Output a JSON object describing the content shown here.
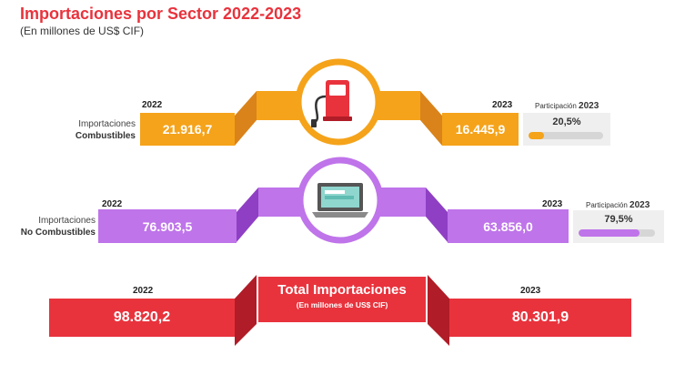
{
  "header": {
    "title": "Importaciones por Sector 2022-2023",
    "subtitle": "(En millones de US$ CIF)"
  },
  "colors": {
    "title": "#e8333d",
    "fuel": "#f5a31a",
    "fuel_dark": "#d9831a",
    "nonfuel": "#bf74ea",
    "nonfuel_dark": "#8f3fc4",
    "total": "#e8333d",
    "total_dark": "#b01c27"
  },
  "icons": {
    "fuel": "fuel-pump-icon",
    "nonfuel": "laptop-icon"
  },
  "chart_data": {
    "type": "bar",
    "title": "Importaciones por Sector 2022-2023",
    "subtitle": "(En millones de US$ CIF)",
    "categories": [
      "2022",
      "2023"
    ],
    "series": [
      {
        "name_line1": "Importaciones",
        "name_line2": "Combustibles",
        "values": [
          "21.916,7",
          "16.445,9"
        ],
        "values_numeric": [
          21916.7,
          16445.9
        ],
        "share_label": "Participación",
        "share_year": "2023",
        "share_text": "20,5%",
        "share_value": 20.5
      },
      {
        "name_line1": "Importaciones",
        "name_line2": "No Combustibles",
        "values": [
          "76.903,5",
          "63.856,0"
        ],
        "values_numeric": [
          76903.5,
          63856.0
        ],
        "share_label": "Participación",
        "share_year": "2023",
        "share_text": "79,5%",
        "share_value": 79.5
      }
    ],
    "total": {
      "title": "Total Importaciones",
      "subtitle": "(En millones de US$ CIF)",
      "values": [
        "98.820,2",
        "80.301,9"
      ],
      "values_numeric": [
        98820.2,
        80301.9
      ]
    }
  }
}
